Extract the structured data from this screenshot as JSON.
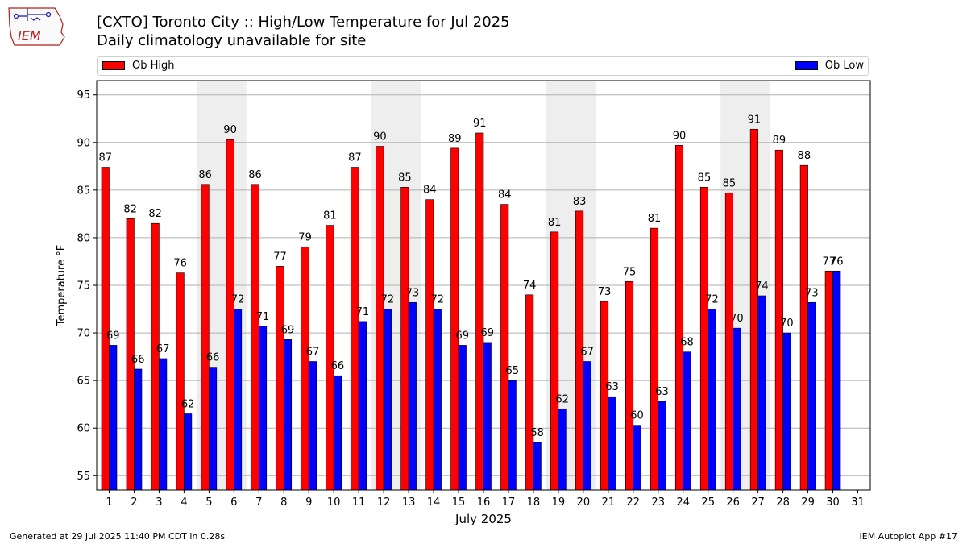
{
  "logo": {
    "text": "IEM"
  },
  "header": {
    "title": "[CXTO] Toronto City :: High/Low Temperature for Jul 2025",
    "subtitle": "Daily climatology unavailable for site"
  },
  "legend": {
    "high_label": "Ob High",
    "low_label": "Ob Low"
  },
  "colors": {
    "high": "#ff0000",
    "low": "#0000ff",
    "weekend_band": "#eeeeee",
    "grid": "#b0b0b0"
  },
  "footer": {
    "generated": "Generated at 29 Jul 2025 11:40 PM CDT in 0.28s",
    "app": "IEM Autoplot App #17"
  },
  "chart_data": {
    "type": "bar",
    "title": "[CXTO] Toronto City :: High/Low Temperature for Jul 2025",
    "subtitle": "Daily climatology unavailable for site",
    "xlabel": "July 2025",
    "ylabel": "Temperature °F",
    "categories": [
      1,
      2,
      3,
      4,
      5,
      6,
      7,
      8,
      9,
      10,
      11,
      12,
      13,
      14,
      15,
      16,
      17,
      18,
      19,
      20,
      21,
      22,
      23,
      24,
      25,
      26,
      27,
      28,
      29,
      30,
      31
    ],
    "series": [
      {
        "name": "Ob High",
        "values": [
          87.4,
          82.0,
          81.5,
          76.3,
          85.6,
          90.3,
          85.6,
          77.0,
          79.0,
          81.3,
          87.4,
          89.6,
          85.3,
          84.0,
          89.4,
          91.0,
          83.5,
          74.0,
          80.6,
          82.8,
          73.3,
          75.4,
          81.0,
          89.7,
          85.3,
          84.7,
          91.4,
          89.2,
          87.6,
          76.5,
          null
        ],
        "labels": [
          "87",
          "82",
          "82",
          "76",
          "86",
          "90",
          "86",
          "77",
          "79",
          "81",
          "87",
          "90",
          "85",
          "84",
          "89",
          "91",
          "84",
          "74",
          "81",
          "83",
          "73",
          "75",
          "81",
          "90",
          "85",
          "85",
          "91",
          "89",
          "88",
          "77",
          ""
        ]
      },
      {
        "name": "Ob Low",
        "values": [
          68.7,
          66.2,
          67.3,
          61.5,
          66.4,
          72.5,
          70.7,
          69.3,
          67.0,
          65.5,
          71.2,
          72.5,
          73.2,
          72.5,
          68.7,
          69.0,
          65.0,
          58.5,
          62.0,
          67.0,
          63.3,
          60.3,
          62.8,
          68.0,
          72.5,
          70.5,
          73.9,
          70.0,
          73.2,
          76.5,
          null
        ],
        "labels": [
          "69",
          "66",
          "67",
          "62",
          "66",
          "72",
          "71",
          "69",
          "67",
          "66",
          "71",
          "72",
          "73",
          "72",
          "69",
          "69",
          "65",
          "58",
          "62",
          "67",
          "63",
          "60",
          "63",
          "68",
          "72",
          "70",
          "74",
          "70",
          "73",
          "76",
          ""
        ]
      }
    ],
    "weekend_days": [
      5,
      6,
      12,
      13,
      19,
      20,
      26,
      27
    ],
    "ylim": [
      53.5,
      96.5
    ],
    "yticks": [
      55,
      60,
      65,
      70,
      75,
      80,
      85,
      90,
      95
    ],
    "grid": true,
    "legend_placement": "top"
  }
}
